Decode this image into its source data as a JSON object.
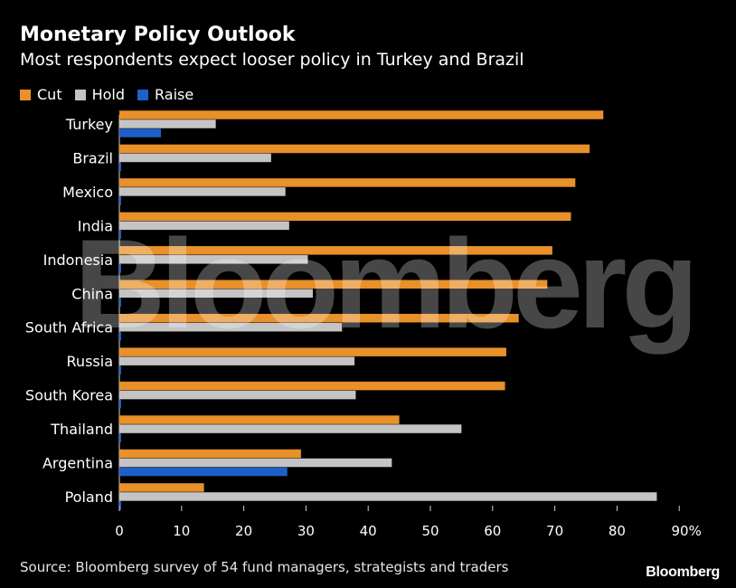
{
  "chart_data": {
    "type": "bar",
    "orientation": "horizontal",
    "title": "Monetary Policy Outlook",
    "subtitle": "Most respondents expect looser policy in Turkey and Brazil",
    "categories": [
      "Turkey",
      "Brazil",
      "Mexico",
      "India",
      "Indonesia",
      "China",
      "South Africa",
      "Russia",
      "South Korea",
      "Thailand",
      "Argentina",
      "Poland"
    ],
    "series": [
      {
        "name": "Cut",
        "color": "#e8902a",
        "values": [
          77.8,
          75.6,
          73.3,
          72.6,
          69.6,
          68.8,
          64.2,
          62.2,
          62,
          45,
          29.2,
          13.6
        ]
      },
      {
        "name": "Hold",
        "color": "#c4c4c4",
        "values": [
          15.5,
          24.4,
          26.7,
          27.3,
          30.3,
          31.1,
          35.8,
          37.8,
          38,
          55,
          43.8,
          86.4
        ]
      },
      {
        "name": "Raise",
        "color": "#1f5fc8",
        "values": [
          6.7,
          0,
          0,
          0,
          0,
          0,
          0,
          0,
          0,
          0,
          27,
          0
        ]
      }
    ],
    "xticks": [
      "0",
      "10",
      "20",
      "30",
      "40",
      "50",
      "60",
      "70",
      "80",
      "90%"
    ],
    "xlim": [
      0,
      90
    ],
    "source": "Source: Bloomberg survey of 54 fund managers, strategists and traders",
    "watermark": "Bloomberg",
    "logo": "Bloomberg"
  }
}
